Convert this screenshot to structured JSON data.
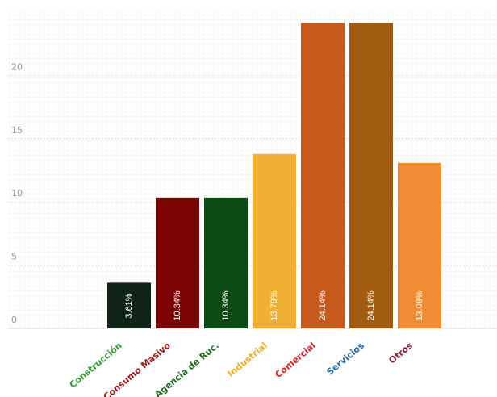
{
  "chart_data": {
    "type": "bar",
    "categories": [
      "Construcción",
      "Consumo Masivo",
      "Agencia de Ruc.",
      "Industrial",
      "Comercial",
      "Servicios",
      "Otros"
    ],
    "values": [
      3.61,
      10.34,
      10.34,
      13.79,
      24.14,
      24.14,
      13.08
    ],
    "value_labels": [
      "3.61%",
      "10.34%",
      "10.34%",
      "13.79%",
      "24.14%",
      "24.14%",
      "13.08%"
    ],
    "colors": [
      "#0f2316",
      "#7d0404",
      "#0b4a12",
      "#f0b034",
      "#c85a1e",
      "#a25c12",
      "#f08c34"
    ],
    "label_colors": [
      "#2e9a2e",
      "#a01818",
      "#1e6a1e",
      "#f0b020",
      "#d02828",
      "#2a6aa8",
      "#8a1c2c"
    ],
    "ylim": [
      0,
      25
    ],
    "yticks": [
      0,
      5,
      10,
      15,
      20
    ],
    "grid": true
  }
}
